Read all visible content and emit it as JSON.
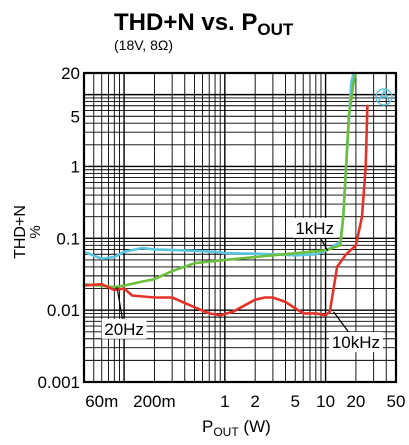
{
  "chart_data": {
    "type": "line",
    "title": "THD+N vs. P",
    "title_sub": "OUT",
    "subtitle": "(18V, 8Ω)",
    "ylabel_line1": "THD+N",
    "ylabel_line2": "%",
    "xlabel_main": "P",
    "xlabel_sub": "OUT",
    "xlabel_unit": " (W)",
    "x_scale": "log",
    "y_scale": "log",
    "xlim": [
      0.04,
      50
    ],
    "ylim": [
      0.001,
      20
    ],
    "grid": true,
    "x_tick_labels": [
      {
        "v": 0.06,
        "t": "60m"
      },
      {
        "v": 0.2,
        "t": "200m"
      },
      {
        "v": 1,
        "t": "1"
      },
      {
        "v": 2,
        "t": "2"
      },
      {
        "v": 5,
        "t": "5"
      },
      {
        "v": 10,
        "t": "10"
      },
      {
        "v": 20,
        "t": "20"
      },
      {
        "v": 50,
        "t": "50"
      }
    ],
    "y_tick_labels": [
      {
        "v": 0.001,
        "t": "0.001"
      },
      {
        "v": 0.01,
        "t": "0.01"
      },
      {
        "v": 0.1,
        "t": "0.1"
      },
      {
        "v": 1,
        "t": "1"
      },
      {
        "v": 5,
        "t": "5"
      },
      {
        "v": 20,
        "t": "20"
      }
    ],
    "series": [
      {
        "name": "1kHz",
        "color": "#5bc5e0",
        "points": [
          [
            0.04,
            0.065
          ],
          [
            0.06,
            0.052
          ],
          [
            0.08,
            0.055
          ],
          [
            0.1,
            0.065
          ],
          [
            0.15,
            0.073
          ],
          [
            0.2,
            0.07
          ],
          [
            0.3,
            0.069
          ],
          [
            0.5,
            0.067
          ],
          [
            0.8,
            0.065
          ],
          [
            1,
            0.062
          ],
          [
            2,
            0.061
          ],
          [
            3,
            0.06
          ],
          [
            5,
            0.058
          ],
          [
            8,
            0.06
          ],
          [
            10,
            0.067
          ],
          [
            12,
            0.078
          ],
          [
            14,
            0.09
          ],
          [
            15,
            0.2
          ],
          [
            16,
            1
          ],
          [
            17,
            4
          ],
          [
            18,
            15
          ],
          [
            19,
            20
          ]
        ]
      },
      {
        "name": "20Hz",
        "color": "#6bbf3c",
        "points": [
          [
            0.04,
            0.023
          ],
          [
            0.08,
            0.021
          ],
          [
            0.1,
            0.022
          ],
          [
            0.15,
            0.025
          ],
          [
            0.2,
            0.027
          ],
          [
            0.3,
            0.035
          ],
          [
            0.5,
            0.045
          ],
          [
            1,
            0.05
          ],
          [
            2,
            0.055
          ],
          [
            5,
            0.062
          ],
          [
            10,
            0.068
          ],
          [
            14,
            0.08
          ],
          [
            15,
            0.2
          ],
          [
            16,
            1
          ],
          [
            17,
            5
          ],
          [
            19,
            15
          ],
          [
            20,
            20
          ]
        ]
      },
      {
        "name": "10kHz",
        "color": "#e53228",
        "points": [
          [
            0.04,
            0.022
          ],
          [
            0.06,
            0.023
          ],
          [
            0.08,
            0.019
          ],
          [
            0.1,
            0.02
          ],
          [
            0.12,
            0.016
          ],
          [
            0.2,
            0.015
          ],
          [
            0.3,
            0.015
          ],
          [
            0.5,
            0.011
          ],
          [
            0.7,
            0.009
          ],
          [
            0.9,
            0.0085
          ],
          [
            1.2,
            0.0095
          ],
          [
            2,
            0.014
          ],
          [
            2.5,
            0.015
          ],
          [
            3,
            0.015
          ],
          [
            4,
            0.013
          ],
          [
            6,
            0.009
          ],
          [
            8,
            0.009
          ],
          [
            10,
            0.0085
          ],
          [
            11,
            0.0095
          ],
          [
            13,
            0.04
          ],
          [
            16,
            0.06
          ],
          [
            20,
            0.08
          ],
          [
            23,
            0.2
          ],
          [
            25,
            1
          ],
          [
            26,
            7
          ]
        ]
      }
    ],
    "annotations": [
      {
        "text": "1kHz",
        "series": "1kHz",
        "lx": 7.8,
        "ly": 0.14,
        "ax": 10.5,
        "ay": 0.067
      },
      {
        "text": "20Hz",
        "series": "20Hz",
        "lx": 0.1,
        "ly": 0.0055,
        "ax": 0.085,
        "ay": 0.021
      },
      {
        "text": "10kHz",
        "series": "10kHz",
        "lx": 20,
        "ly": 0.0036,
        "ax": 12,
        "ay": 0.0095
      }
    ]
  }
}
